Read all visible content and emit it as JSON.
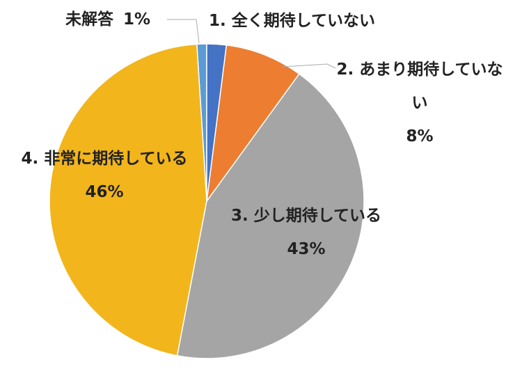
{
  "chart_data": {
    "type": "pie",
    "categories": [
      "1. 全く期待していない",
      "2. あまり期待していない",
      "3. 少し期待している",
      "4. 非常に期待している",
      "未解答"
    ],
    "values": [
      2,
      8,
      43,
      46,
      1
    ],
    "value_labels": [
      null,
      "8%",
      "43%",
      "46%",
      "1%"
    ],
    "colors": [
      "#4472c4",
      "#ed7d31",
      "#a5a5a5",
      "#f2b51b",
      "#5b9bd5"
    ]
  }
}
